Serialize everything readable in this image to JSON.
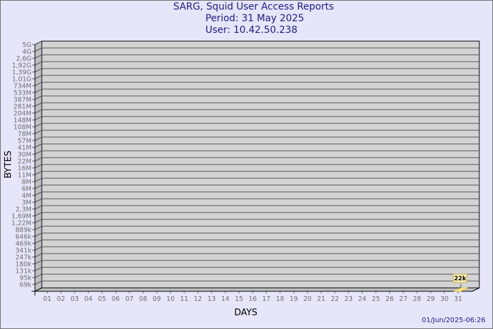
{
  "chart_data": {
    "type": "bar",
    "title_lines": [
      "SARG, Squid User Access Reports",
      "Period: 31 May 2025",
      "User: 10.42.50.238"
    ],
    "xlabel": "DAYS",
    "ylabel": "BYTES",
    "y_scale": "log",
    "y_tick_labels": [
      "5G",
      "4G",
      "2,6G",
      "1,92G",
      "1,39G",
      "1,01G",
      "734M",
      "533M",
      "387M",
      "281M",
      "204M",
      "148M",
      "108M",
      "78M",
      "57M",
      "41M",
      "30M",
      "22M",
      "16M",
      "11M",
      "8M",
      "6M",
      "4M",
      "3M",
      "2,3M",
      "1,69M",
      "1,22M",
      "889k",
      "646k",
      "469k",
      "341k",
      "247k",
      "180k",
      "131k",
      "95k",
      "69k"
    ],
    "categories": [
      "01",
      "02",
      "03",
      "04",
      "05",
      "06",
      "07",
      "08",
      "09",
      "10",
      "11",
      "12",
      "13",
      "14",
      "15",
      "16",
      "17",
      "18",
      "19",
      "20",
      "21",
      "22",
      "23",
      "24",
      "25",
      "26",
      "27",
      "28",
      "29",
      "30",
      "31"
    ],
    "values": [
      null,
      null,
      null,
      null,
      null,
      null,
      null,
      null,
      null,
      null,
      null,
      null,
      null,
      null,
      null,
      null,
      null,
      null,
      null,
      null,
      null,
      null,
      null,
      null,
      null,
      null,
      null,
      null,
      null,
      null,
      22000
    ],
    "data_labels": {
      "31": "22k"
    },
    "grid": true,
    "colors": {
      "background": "#e6e6fa",
      "plot": "#d3d3d3",
      "bar": "#ffe680",
      "title": "#1a1a8c"
    }
  },
  "footer": {
    "timestamp": "01/Jun/2025-06:26"
  }
}
